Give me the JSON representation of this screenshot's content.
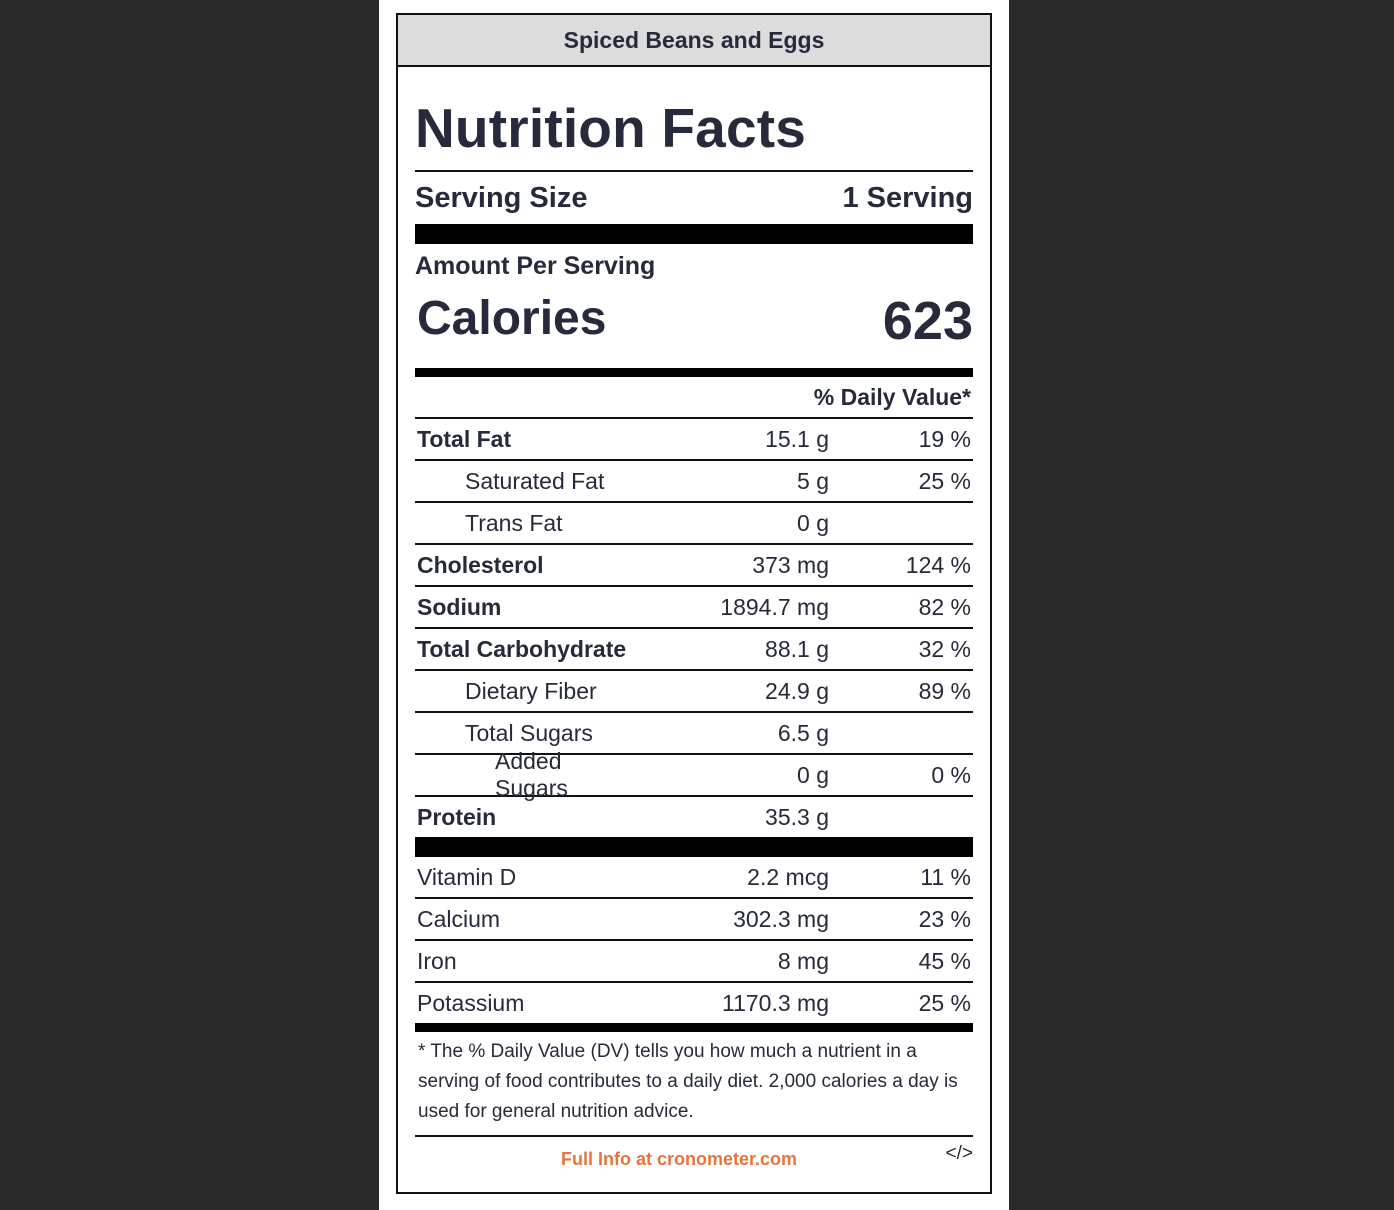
{
  "recipe_title": "Spiced Beans and Eggs",
  "heading": "Nutrition Facts",
  "serving": {
    "label": "Serving Size",
    "value": "1 Serving"
  },
  "amount_per_serving": "Amount Per Serving",
  "calories": {
    "label": "Calories",
    "value": "623"
  },
  "daily_value_header": "% Daily Value*",
  "nutrients": [
    {
      "name": "Total Fat",
      "amount": "15.1 g",
      "dv": "19 %"
    },
    {
      "name": "Saturated Fat",
      "amount": "5 g",
      "dv": "25 %"
    },
    {
      "name": "Trans Fat",
      "amount": "0 g",
      "dv": ""
    },
    {
      "name": "Cholesterol",
      "amount": "373 mg",
      "dv": "124 %"
    },
    {
      "name": "Sodium",
      "amount": "1894.7 mg",
      "dv": "82 %"
    },
    {
      "name": "Total Carbohydrate",
      "amount": "88.1 g",
      "dv": "32 %"
    },
    {
      "name": "Dietary Fiber",
      "amount": "24.9 g",
      "dv": "89 %"
    },
    {
      "name": "Total Sugars",
      "amount": "6.5 g",
      "dv": ""
    },
    {
      "name": "Added Sugars",
      "amount": "0 g",
      "dv": "0 %"
    },
    {
      "name": "Protein",
      "amount": "35.3 g",
      "dv": ""
    }
  ],
  "vitamins": [
    {
      "name": "Vitamin D",
      "amount": "2.2 mcg",
      "dv": "11 %"
    },
    {
      "name": "Calcium",
      "amount": "302.3 mg",
      "dv": "23 %"
    },
    {
      "name": "Iron",
      "amount": "8 mg",
      "dv": "45 %"
    },
    {
      "name": "Potassium",
      "amount": "1170.3 mg",
      "dv": "25 %"
    }
  ],
  "footnote": "* The % Daily Value (DV) tells you how much a nutrient in a serving of food contributes to a daily diet. 2,000 calories a day is used for general nutrition advice.",
  "footer": {
    "link_text": "Full Info at cronometer.com",
    "embed_icon": "</>"
  },
  "colors": {
    "link": "#e8733b",
    "header_bg": "#dcdcdc",
    "text": "#262a3b",
    "page_bg": "#2a2a2a"
  }
}
